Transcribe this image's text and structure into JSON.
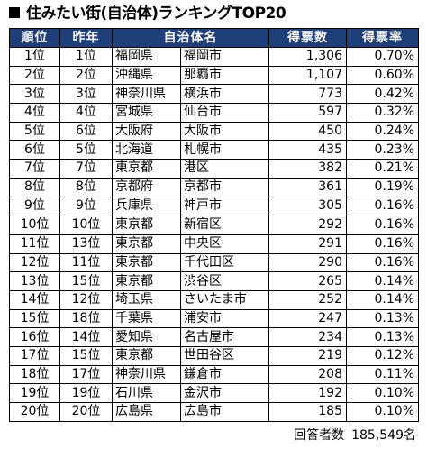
{
  "title": "住みたい街(自治体)ランキングTOP20",
  "headers": [
    "順位",
    "昨年",
    "自治体名",
    "得票数",
    "得票率"
  ],
  "rows": [
    {
      "rank": "1位",
      "last": "1位",
      "pref": "福岡県",
      "city": "福岡市",
      "votes": "1,306",
      "rate": "0.70%"
    },
    {
      "rank": "2位",
      "last": "2位",
      "pref": "沖縄県",
      "city": "那覇市",
      "votes": "1,107",
      "rate": "0.60%"
    },
    {
      "rank": "3位",
      "last": "3位",
      "pref": "神奈川県",
      "city": "横浜市",
      "votes": "773",
      "rate": "0.42%"
    },
    {
      "rank": "4位",
      "last": "4位",
      "pref": "宮城県",
      "city": "仙台市",
      "votes": "597",
      "rate": "0.32%"
    },
    {
      "rank": "5位",
      "last": "6位",
      "pref": "大阪府",
      "city": "大阪市",
      "votes": "450",
      "rate": "0.24%"
    },
    {
      "rank": "6位",
      "last": "5位",
      "pref": "北海道",
      "city": "札幌市",
      "votes": "435",
      "rate": "0.23%"
    },
    {
      "rank": "7位",
      "last": "7位",
      "pref": "東京都",
      "city": "港区",
      "votes": "382",
      "rate": "0.21%"
    },
    {
      "rank": "8位",
      "last": "8位",
      "pref": "京都府",
      "city": "京都市",
      "votes": "361",
      "rate": "0.19%"
    },
    {
      "rank": "9位",
      "last": "9位",
      "pref": "兵庫県",
      "city": "神戸市",
      "votes": "305",
      "rate": "0.16%"
    },
    {
      "rank": "10位",
      "last": "10位",
      "pref": "東京都",
      "city": "新宿区",
      "votes": "292",
      "rate": "0.16%"
    },
    {
      "rank": "11位",
      "last": "13位",
      "pref": "東京都",
      "city": "中央区",
      "votes": "291",
      "rate": "0.16%"
    },
    {
      "rank": "12位",
      "last": "11位",
      "pref": "東京都",
      "city": "千代田区",
      "votes": "290",
      "rate": "0.16%"
    },
    {
      "rank": "13位",
      "last": "15位",
      "pref": "東京都",
      "city": "渋谷区",
      "votes": "265",
      "rate": "0.14%"
    },
    {
      "rank": "14位",
      "last": "12位",
      "pref": "埼玉県",
      "city": "さいたま市",
      "votes": "252",
      "rate": "0.14%"
    },
    {
      "rank": "15位",
      "last": "18位",
      "pref": "千葉県",
      "city": "浦安市",
      "votes": "247",
      "rate": "0.13%"
    },
    {
      "rank": "16位",
      "last": "14位",
      "pref": "愛知県",
      "city": "名古屋市",
      "votes": "234",
      "rate": "0.13%"
    },
    {
      "rank": "17位",
      "last": "15位",
      "pref": "東京都",
      "city": "世田谷区",
      "votes": "219",
      "rate": "0.12%"
    },
    {
      "rank": "18位",
      "last": "17位",
      "pref": "神奈川県",
      "city": "鎌倉市",
      "votes": "208",
      "rate": "0.11%"
    },
    {
      "rank": "19位",
      "last": "19位",
      "pref": "石川県",
      "city": "金沢市",
      "votes": "192",
      "rate": "0.10%"
    },
    {
      "rank": "20位",
      "last": "20位",
      "pref": "広島県",
      "city": "広島市",
      "votes": "185",
      "rate": "0.10%"
    }
  ],
  "footer": {
    "label": "回答者数",
    "value": "185,549名"
  }
}
